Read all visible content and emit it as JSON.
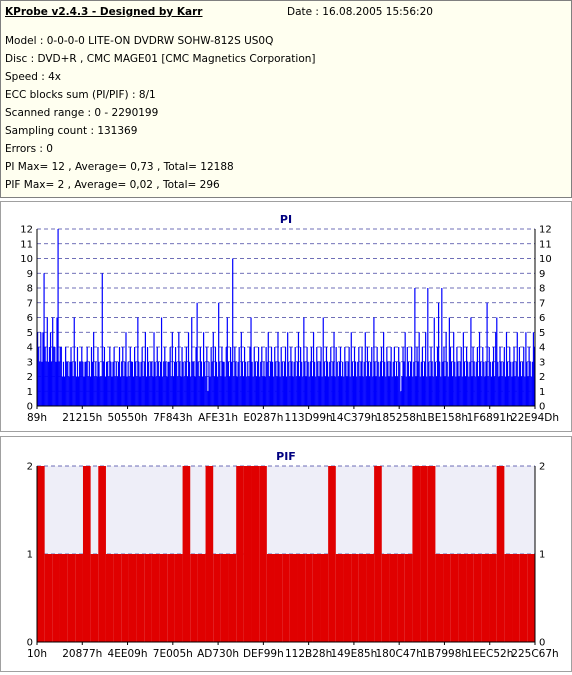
{
  "info": {
    "title": "KProbe v2.4.3 - Designed by Karr",
    "date": "Date : 16.08.2005 15:56:20",
    "model": "Model : 0-0-0-0 LITE-ON DVDRW SOHW-812S  US0Q",
    "disc": "Disc : DVD+R , CMC MAGE01 [CMC Magnetics Corporation]",
    "speed": "Speed : 4x",
    "ecc": "ECC blocks sum (PI/PIF) : 8/1",
    "range": "Scanned range : 0 - 2290199",
    "sampling": "Sampling count : 131369",
    "errors": "Errors : 0",
    "pi_stats": "PI Max= 12 , Average= 0,73 , Total= 12188",
    "pif_stats": "PIF Max= 2 , Average= 0,02 , Total= 296"
  },
  "colors": {
    "pi_bars": "#0000ff",
    "pif_bars": "#e00000",
    "title_text": "#000080",
    "plot_bg_pi": "#ffffff",
    "plot_bg_pif": "#eeeef8",
    "grid": "#4040a0"
  },
  "chart_data": [
    {
      "type": "bar",
      "title": "PI",
      "ylim": [
        0,
        12
      ],
      "y_ticks": [
        "0",
        "1",
        "2",
        "3",
        "4",
        "5",
        "6",
        "7",
        "8",
        "9",
        "10",
        "11",
        "12"
      ],
      "x_tick_labels": [
        "89h",
        "21215h",
        "50550h",
        "7F843h",
        "AFE31h",
        "E0287h",
        "113D99h",
        "14C379h",
        "185258h",
        "1BE158h",
        "1F6891h",
        "22E94Dh"
      ],
      "grid": true,
      "series": [
        {
          "values": [
            5,
            4,
            3,
            5,
            3,
            5,
            9,
            4,
            3,
            6,
            3,
            4,
            5,
            3,
            6,
            4,
            4,
            3,
            6,
            12,
            3,
            4,
            4,
            2,
            3,
            2,
            4,
            3,
            3,
            2,
            3,
            4,
            3,
            2,
            6,
            3,
            2,
            4,
            2,
            3,
            3,
            4,
            3,
            2,
            3,
            3,
            4,
            2,
            3,
            2,
            4,
            3,
            5,
            2,
            3,
            2,
            4,
            3,
            2,
            2,
            9,
            3,
            4,
            2,
            3,
            3,
            2,
            4,
            3,
            2,
            3,
            4,
            2,
            3,
            2,
            3,
            4,
            2,
            3,
            4,
            2,
            3,
            5,
            2,
            3,
            2,
            4,
            3,
            3,
            2,
            4,
            3,
            2,
            6,
            3,
            2,
            3,
            4,
            2,
            3,
            5,
            2,
            4,
            3,
            2,
            3,
            3,
            2,
            5,
            3,
            2,
            4,
            3,
            2,
            3,
            6,
            2,
            3,
            4,
            3,
            2,
            3,
            3,
            4,
            2,
            5,
            2,
            3,
            4,
            3,
            2,
            5,
            3,
            2,
            4,
            3,
            2,
            3,
            4,
            2,
            5,
            3,
            2,
            6,
            3,
            3,
            2,
            4,
            7,
            3,
            2,
            4,
            3,
            2,
            5,
            3,
            2,
            4,
            1,
            3,
            2,
            4,
            3,
            5,
            2,
            4,
            3,
            2,
            7,
            3,
            2,
            4,
            3,
            3,
            2,
            4,
            6,
            3,
            2,
            4,
            3,
            10,
            2,
            4,
            3,
            2,
            3,
            4,
            2,
            5,
            3,
            2,
            4,
            3,
            2,
            3,
            2,
            4,
            6,
            3,
            2,
            4,
            3,
            2,
            3,
            4,
            2,
            3,
            4,
            2,
            3,
            2,
            4,
            3,
            5,
            2,
            3,
            4,
            3,
            2,
            4,
            3,
            2,
            5,
            3,
            2,
            4,
            3,
            2,
            3,
            4,
            2,
            5,
            3,
            2,
            4,
            3,
            2,
            3,
            4,
            2,
            3,
            5,
            2,
            4,
            3,
            2,
            6,
            3,
            2,
            4,
            3,
            2,
            3,
            4,
            2,
            5,
            3,
            2,
            4,
            3,
            2,
            3,
            4,
            2,
            6,
            3,
            2,
            4,
            3,
            2,
            3,
            4,
            2,
            3,
            5,
            2,
            4,
            3,
            2,
            3,
            4,
            2,
            3,
            2,
            4,
            3,
            2,
            3,
            4,
            2,
            5,
            3,
            2,
            4,
            3,
            2,
            3,
            4,
            2,
            3,
            4,
            2,
            3,
            5,
            2,
            4,
            3,
            2,
            3,
            4,
            2,
            6,
            3,
            2,
            4,
            3,
            2,
            3,
            4,
            2,
            5,
            3,
            2,
            4,
            3,
            2,
            3,
            4,
            2,
            3,
            4,
            2,
            3,
            2,
            4,
            3,
            1,
            2,
            4,
            3,
            5,
            2,
            4,
            3,
            2,
            3,
            4,
            2,
            3,
            8,
            2,
            4,
            3,
            5,
            2,
            3,
            4,
            2,
            3,
            5,
            2,
            8,
            3,
            2,
            4,
            3,
            2,
            6,
            3,
            2,
            4,
            7,
            3,
            2,
            8,
            3,
            4,
            2,
            5,
            3,
            2,
            6,
            4,
            3,
            2,
            5,
            3,
            2,
            4,
            3,
            2,
            3,
            4,
            2,
            5,
            3,
            2,
            4,
            3,
            2,
            3,
            6,
            2,
            4,
            3,
            2,
            3,
            4,
            2,
            5,
            3,
            2,
            4,
            3,
            2,
            3,
            7,
            2,
            4,
            3,
            2,
            3,
            4,
            2,
            5,
            6,
            3,
            2,
            4,
            3,
            2,
            3,
            4,
            2,
            5,
            3,
            2,
            4,
            3,
            2,
            3,
            4,
            2,
            3,
            5,
            2,
            4,
            3,
            2,
            3,
            4,
            2,
            5,
            3,
            2,
            4,
            3,
            2,
            3,
            5,
            4
          ]
        }
      ]
    },
    {
      "type": "bar",
      "title": "PIF",
      "ylim": [
        0,
        2
      ],
      "y_ticks": [
        "0",
        "1",
        "2"
      ],
      "x_tick_labels": [
        "10h",
        "20877h",
        "4EE09h",
        "7E005h",
        "AD730h",
        "DEF99h",
        "112B28h",
        "149E85h",
        "180C47h",
        "1B7998h",
        "1EEC52h",
        "225C67h"
      ],
      "grid": true,
      "series": [
        {
          "values": [
            2,
            1,
            1,
            1,
            1,
            1,
            2,
            1,
            2,
            1,
            1,
            1,
            1,
            1,
            1,
            1,
            1,
            1,
            1,
            2,
            1,
            1,
            2,
            1,
            1,
            1,
            2,
            2,
            2,
            2,
            1,
            1,
            1,
            1,
            1,
            1,
            1,
            1,
            2,
            1,
            1,
            1,
            1,
            1,
            2,
            1,
            1,
            1,
            1,
            2,
            2,
            2,
            1,
            1,
            1,
            1,
            1,
            1,
            1,
            1,
            2,
            1,
            1,
            1,
            1
          ]
        }
      ]
    }
  ]
}
